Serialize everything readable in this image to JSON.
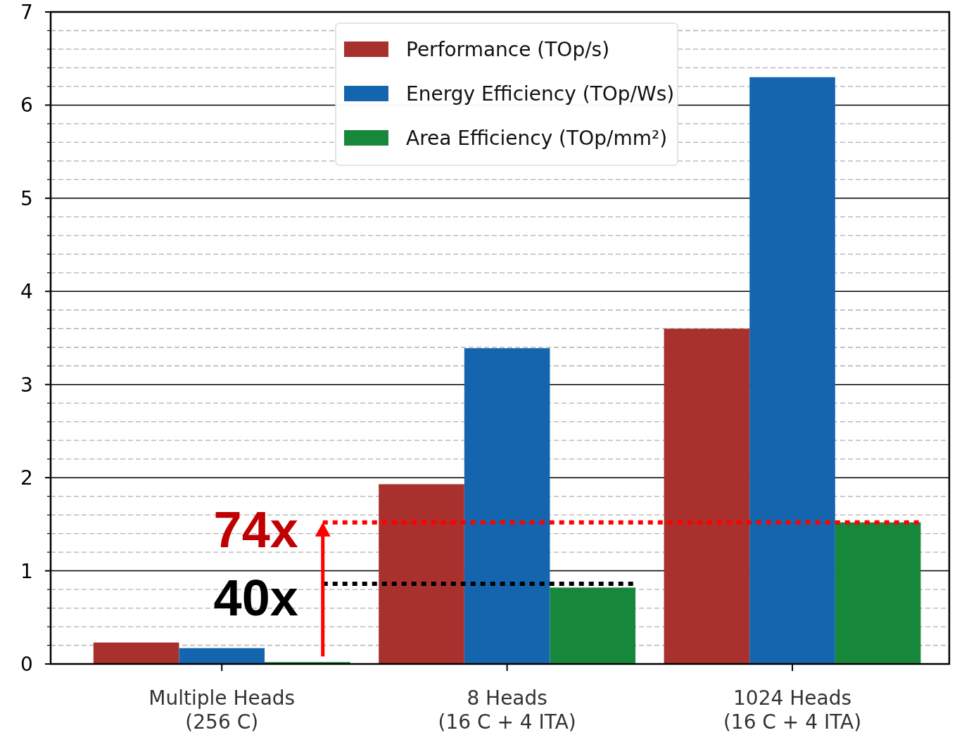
{
  "chart_data": {
    "type": "bar",
    "categories": [
      "Multiple Heads\n(256 C)",
      "8 Heads\n(16 C + 4 ITA)",
      "1024 Heads\n(16 C + 4 ITA)"
    ],
    "series": [
      {
        "name": "Performance (TOp/s)",
        "color": "#a8312d",
        "values": [
          0.23,
          1.93,
          3.6
        ]
      },
      {
        "name": "Energy Efficiency (TOp/Ws)",
        "color": "#1565ae",
        "values": [
          0.17,
          3.39,
          6.3
        ]
      },
      {
        "name": "Area Efficiency (TOp/mm²)",
        "color": "#17873b",
        "values": [
          0.02,
          0.82,
          1.52
        ]
      }
    ],
    "ylim": [
      0,
      7
    ],
    "yticks": [
      0,
      1,
      2,
      3,
      4,
      5,
      6,
      7
    ],
    "grid": true,
    "legend": "top",
    "ref_lines": [
      {
        "axis": "y",
        "value": 1.52,
        "label": "74x",
        "color": "#ff0000",
        "line_style": "dotted"
      },
      {
        "axis": "y",
        "value": 0.86,
        "label": "40x",
        "color": "#000000",
        "line_style": "dotted"
      }
    ]
  }
}
